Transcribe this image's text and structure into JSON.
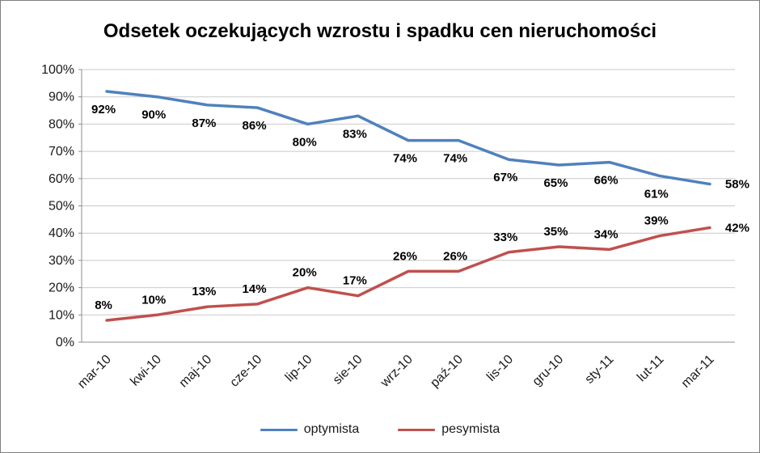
{
  "chart_data": {
    "type": "line",
    "title": "Odsetek oczekujących wzrostu i spadku cen nieruchomości",
    "categories": [
      "mar-10",
      "kwi-10",
      "maj-10",
      "cze-10",
      "lip-10",
      "sie-10",
      "wrz-10",
      "paź-10",
      "lis-10",
      "gru-10",
      "sty-11",
      "lut-11",
      "mar-11"
    ],
    "series": [
      {
        "name": "optymista",
        "color": "#4f81bd",
        "values": [
          92,
          90,
          87,
          86,
          80,
          83,
          74,
          74,
          67,
          65,
          66,
          61,
          58
        ]
      },
      {
        "name": "pesymista",
        "color": "#c0504d",
        "values": [
          8,
          10,
          13,
          14,
          20,
          17,
          26,
          26,
          33,
          35,
          34,
          39,
          42
        ]
      }
    ],
    "ylim": [
      0,
      100
    ],
    "ytick_step": 10,
    "ytick_suffix": "%",
    "data_label_suffix": "%",
    "grid": true,
    "legend_position": "bottom"
  }
}
